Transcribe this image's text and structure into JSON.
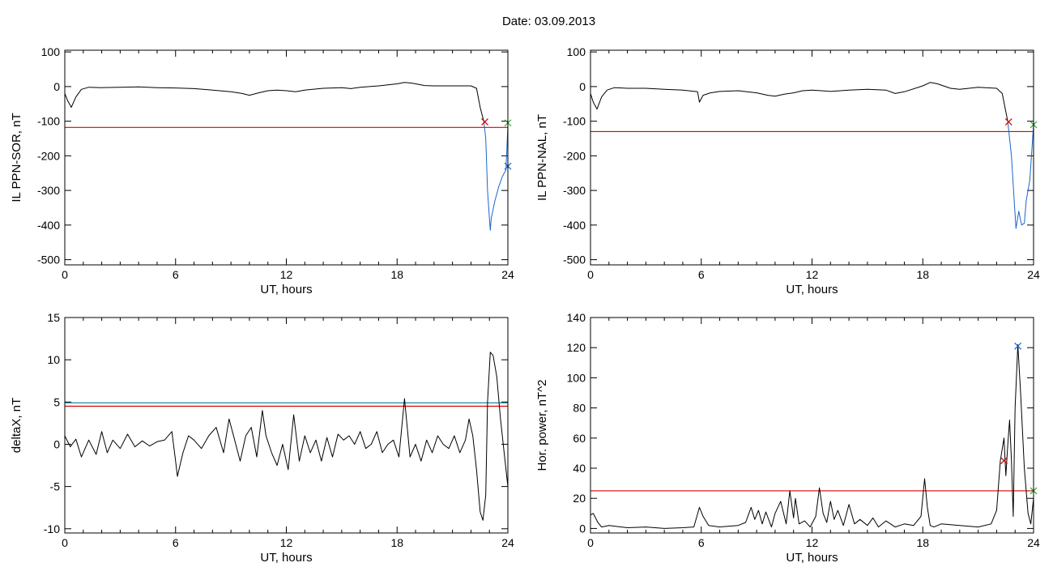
{
  "header": {
    "title": "Date:  03.09.2013"
  },
  "chart_data": [
    {
      "type": "line",
      "ylabel": "IL PPN-SOR, nT",
      "xlabel": "UT, hours",
      "xlim": [
        0,
        24
      ],
      "ylim": [
        -515,
        105
      ],
      "xticks": [
        0,
        6,
        12,
        18,
        24
      ],
      "yticks": [
        100,
        0,
        -100,
        -200,
        -300,
        -400,
        -500
      ],
      "series": [
        {
          "color": "#000000",
          "x": [
            0,
            0.15,
            0.35,
            0.6,
            0.9,
            1.3,
            2,
            3,
            4,
            5,
            6,
            7,
            8,
            9,
            9.6,
            10,
            10.5,
            11,
            11.5,
            12,
            12.5,
            13,
            14,
            15,
            15.5,
            16,
            17,
            18,
            18.4,
            18.8,
            19.5,
            20,
            21,
            22,
            22.3,
            22.5,
            22.7
          ],
          "y": [
            -20,
            -40,
            -60,
            -30,
            -8,
            -2,
            -3,
            -2,
            -1,
            -3,
            -4,
            -6,
            -10,
            -15,
            -20,
            -25,
            -18,
            -12,
            -10,
            -12,
            -15,
            -10,
            -5,
            -3,
            -6,
            -2,
            2,
            8,
            12,
            10,
            3,
            2,
            2,
            2,
            -5,
            -60,
            -102
          ]
        },
        {
          "color": "#1a66cc",
          "x": [
            22.7,
            22.8,
            22.9,
            23,
            23.05,
            23.1,
            23.3,
            23.5,
            23.7,
            23.9,
            24
          ],
          "y": [
            -102,
            -150,
            -300,
            -380,
            -415,
            -380,
            -330,
            -290,
            -260,
            -240,
            -110
          ]
        }
      ],
      "threshold": {
        "value": -118,
        "color": "#dd0000"
      },
      "markers": [
        {
          "x": 22.75,
          "y": -102,
          "symbol": "x",
          "color": "#cc0000"
        },
        {
          "x": 24,
          "y": -105,
          "symbol": "x",
          "color": "#33aa33"
        },
        {
          "x": 24,
          "y": -230,
          "symbol": "x",
          "color": "#1a66cc"
        }
      ]
    },
    {
      "type": "line",
      "ylabel": "IL PPN-NAL, nT",
      "xlabel": "UT, hours",
      "xlim": [
        0,
        24
      ],
      "ylim": [
        -515,
        105
      ],
      "xticks": [
        0,
        6,
        12,
        18,
        24
      ],
      "yticks": [
        100,
        0,
        -100,
        -200,
        -300,
        -400,
        -500
      ],
      "series": [
        {
          "color": "#000000",
          "x": [
            0,
            0.15,
            0.35,
            0.6,
            0.9,
            1.3,
            2,
            3,
            4,
            5,
            5.8,
            5.9,
            6.1,
            6.5,
            7,
            8,
            9,
            9.6,
            10,
            10.5,
            11,
            11.5,
            12,
            12.5,
            13,
            14,
            15,
            16,
            16.5,
            17,
            18,
            18.4,
            18.8,
            19.5,
            20,
            21,
            22,
            22.3,
            22.6
          ],
          "y": [
            -20,
            -45,
            -65,
            -30,
            -10,
            -3,
            -5,
            -5,
            -8,
            -10,
            -15,
            -45,
            -25,
            -18,
            -14,
            -12,
            -18,
            -25,
            -28,
            -22,
            -18,
            -12,
            -10,
            -12,
            -14,
            -10,
            -8,
            -10,
            -20,
            -15,
            2,
            12,
            8,
            -5,
            -8,
            -2,
            -5,
            -20,
            -100
          ]
        },
        {
          "color": "#1a66cc",
          "x": [
            22.6,
            22.8,
            22.95,
            23.05,
            23.2,
            23.35,
            23.5,
            23.6,
            23.8,
            24
          ],
          "y": [
            -100,
            -200,
            -330,
            -410,
            -360,
            -400,
            -395,
            -330,
            -270,
            -110
          ]
        }
      ],
      "threshold": {
        "value": -130,
        "color": "#dd0000"
      },
      "markers": [
        {
          "x": 22.65,
          "y": -102,
          "symbol": "x",
          "color": "#cc0000"
        },
        {
          "x": 24,
          "y": -110,
          "symbol": "x",
          "color": "#33aa33"
        }
      ]
    },
    {
      "type": "line",
      "ylabel": "deltaX, nT",
      "xlabel": "UT, hours",
      "xlim": [
        0,
        24
      ],
      "ylim": [
        -10.5,
        15
      ],
      "xticks": [
        0,
        6,
        12,
        18,
        24
      ],
      "yticks": [
        15,
        10,
        5,
        0,
        -5,
        -10
      ],
      "series": [
        {
          "color": "#000000",
          "x": [
            0,
            0.3,
            0.6,
            0.9,
            1.3,
            1.7,
            2,
            2.3,
            2.6,
            3,
            3.4,
            3.8,
            4.2,
            4.6,
            5,
            5.4,
            5.8,
            6,
            6.1,
            6.4,
            6.7,
            7,
            7.4,
            7.8,
            8.2,
            8.6,
            8.9,
            9.2,
            9.5,
            9.8,
            10.1,
            10.4,
            10.7,
            10.9,
            11.2,
            11.5,
            11.8,
            12.1,
            12.4,
            12.7,
            13,
            13.3,
            13.6,
            13.9,
            14.2,
            14.5,
            14.8,
            15.1,
            15.4,
            15.7,
            16,
            16.3,
            16.6,
            16.9,
            17.2,
            17.5,
            17.8,
            18.1,
            18.4,
            18.7,
            19,
            19.3,
            19.6,
            19.9,
            20.2,
            20.5,
            20.8,
            21.1,
            21.4,
            21.7,
            21.9,
            22.1,
            22.3,
            22.5,
            22.65,
            22.8,
            22.9,
            23.05,
            23.2,
            23.4,
            23.6,
            23.8,
            24
          ],
          "y": [
            1,
            -0.3,
            0.6,
            -1.5,
            0.5,
            -1.2,
            1.5,
            -1,
            0.5,
            -0.5,
            1.2,
            -0.3,
            0.4,
            -0.2,
            0.3,
            0.5,
            1.5,
            -2,
            -3.8,
            -1,
            1,
            0.5,
            -0.5,
            1,
            2,
            -1,
            3,
            0.5,
            -2,
            1,
            2,
            -1.5,
            4,
            1,
            -1,
            -2.5,
            0,
            -3,
            3.5,
            -2,
            1,
            -1,
            0.5,
            -2,
            0.8,
            -1.5,
            1.2,
            0.5,
            1,
            0,
            1.5,
            -0.5,
            0,
            1.5,
            -1,
            0,
            0.5,
            -1.5,
            5.4,
            -1.5,
            0,
            -2,
            0.5,
            -1,
            1,
            0,
            -0.5,
            1,
            -1,
            0.5,
            3,
            1,
            -3,
            -8,
            -9,
            -6,
            5,
            10.9,
            10.5,
            8,
            3,
            -1,
            -5
          ]
        }
      ],
      "thresholds": [
        {
          "value": 4.9,
          "color": "#1a8aaa"
        },
        {
          "value": 4.5,
          "color": "#dd0000"
        }
      ],
      "markers": []
    },
    {
      "type": "line",
      "ylabel": "Hor. power, nT^2",
      "xlabel": "UT, hours",
      "xlim": [
        0,
        24
      ],
      "ylim": [
        -3,
        140
      ],
      "xticks": [
        0,
        6,
        12,
        18,
        24
      ],
      "yticks": [
        140,
        120,
        100,
        80,
        60,
        40,
        20,
        0
      ],
      "series": [
        {
          "color": "#000000",
          "x": [
            0,
            0.15,
            0.4,
            0.6,
            1,
            2,
            3,
            4,
            5,
            5.6,
            5.9,
            6.1,
            6.4,
            7,
            8,
            8.4,
            8.7,
            8.9,
            9.1,
            9.3,
            9.5,
            9.8,
            10,
            10.3,
            10.6,
            10.8,
            11,
            11.1,
            11.3,
            11.6,
            11.9,
            12.2,
            12.4,
            12.6,
            12.8,
            13,
            13.2,
            13.4,
            13.7,
            14,
            14.3,
            14.6,
            15,
            15.3,
            15.6,
            16,
            16.5,
            17,
            17.5,
            17.9,
            18.1,
            18.25,
            18.4,
            18.6,
            19,
            20,
            21,
            21.7,
            22,
            22.2,
            22.4,
            22.5,
            22.6,
            22.7,
            22.8,
            22.9,
            23,
            23.15,
            23.3,
            23.5,
            23.7,
            23.85,
            24
          ],
          "y": [
            9,
            10,
            4,
            1,
            2,
            0.5,
            1,
            0,
            0.5,
            1,
            14,
            8,
            2,
            1,
            2,
            4,
            14,
            6,
            12,
            3,
            11,
            1,
            10,
            18,
            3,
            25,
            7,
            20,
            3,
            5,
            1,
            8,
            27,
            10,
            4,
            18,
            6,
            12,
            2,
            16,
            3,
            6,
            2,
            7,
            1,
            5,
            1,
            3,
            2,
            8,
            33,
            14,
            2,
            1,
            3,
            2,
            1,
            3,
            12,
            45,
            60,
            35,
            55,
            72,
            45,
            8,
            80,
            122,
            90,
            40,
            10,
            3,
            20
          ]
        }
      ],
      "threshold": {
        "value": 25,
        "color": "#dd0000"
      },
      "markers": [
        {
          "x": 22.4,
          "y": 45,
          "symbol": "x",
          "color": "#cc0000"
        },
        {
          "x": 23.15,
          "y": 121,
          "symbol": "x",
          "color": "#1a66cc"
        },
        {
          "x": 24,
          "y": 25,
          "symbol": "x",
          "color": "#33aa33"
        }
      ]
    }
  ]
}
